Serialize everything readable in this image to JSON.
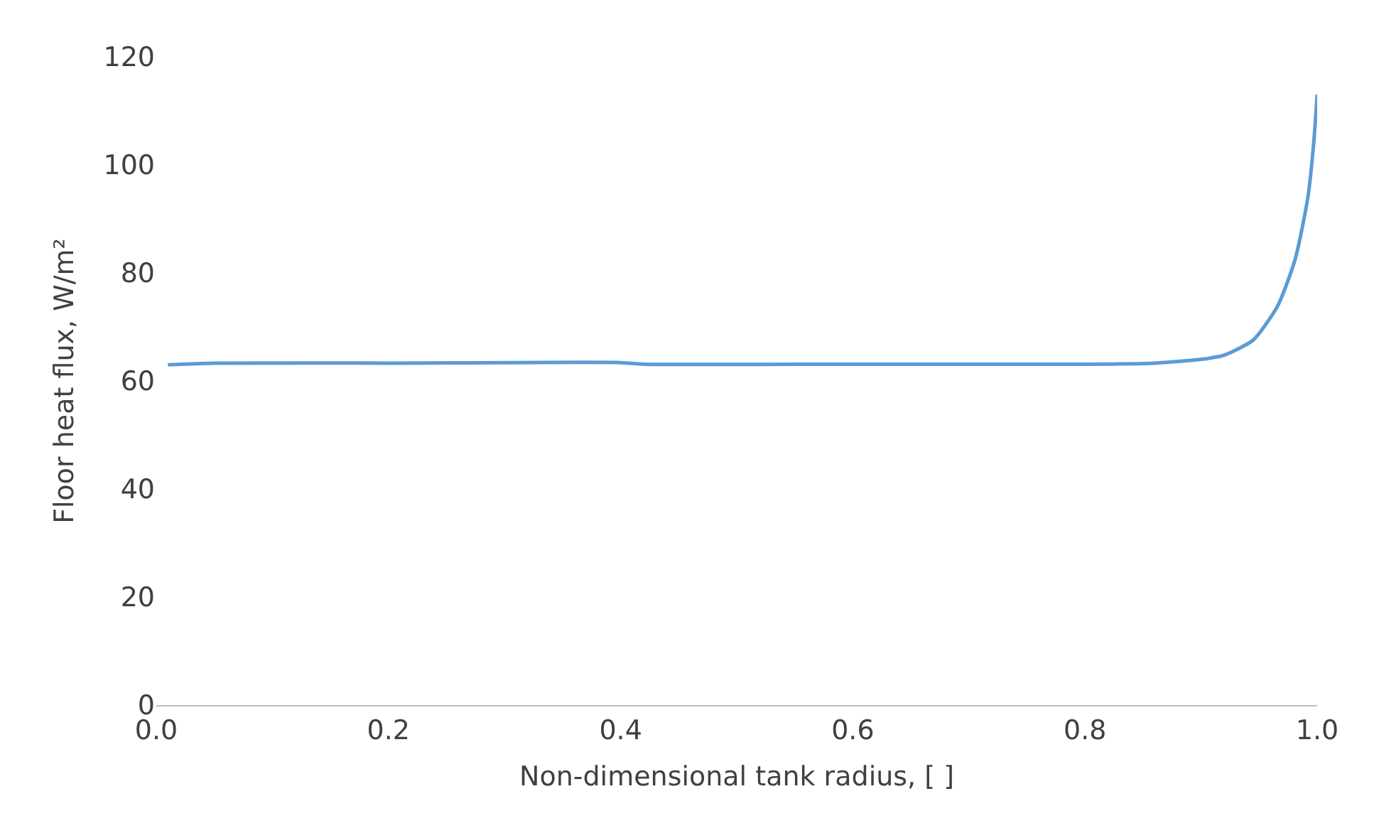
{
  "chart_data": {
    "type": "line",
    "xlabel": "Non-dimensional tank radius, [ ]",
    "ylabel": "Floor heat flux, W/m²",
    "x": [
      0.01,
      0.05,
      0.2,
      0.4,
      0.42,
      0.6,
      0.8,
      0.86,
      0.9,
      0.92,
      0.945,
      0.966,
      0.981,
      0.992,
      0.997,
      1.0
    ],
    "series": [
      {
        "color": "#5b9bd5",
        "values": [
          63,
          63.3,
          63.3,
          63.4,
          63.1,
          63.1,
          63.1,
          63.3,
          64,
          64.8,
          67.6,
          73.9,
          82.5,
          94,
          104,
          113
        ]
      }
    ],
    "xlim": [
      0,
      1
    ],
    "xticks": [
      {
        "value": 0,
        "label": "0.0"
      },
      0.2,
      0.4,
      0.6,
      0.8,
      {
        "value": 1,
        "label": "1.0"
      }
    ],
    "ylim": [
      0,
      120
    ],
    "yticks": [
      0,
      20,
      40,
      60,
      80,
      100,
      120
    ],
    "grid": false,
    "marker": "none",
    "line_style": "solid",
    "legend": false
  }
}
